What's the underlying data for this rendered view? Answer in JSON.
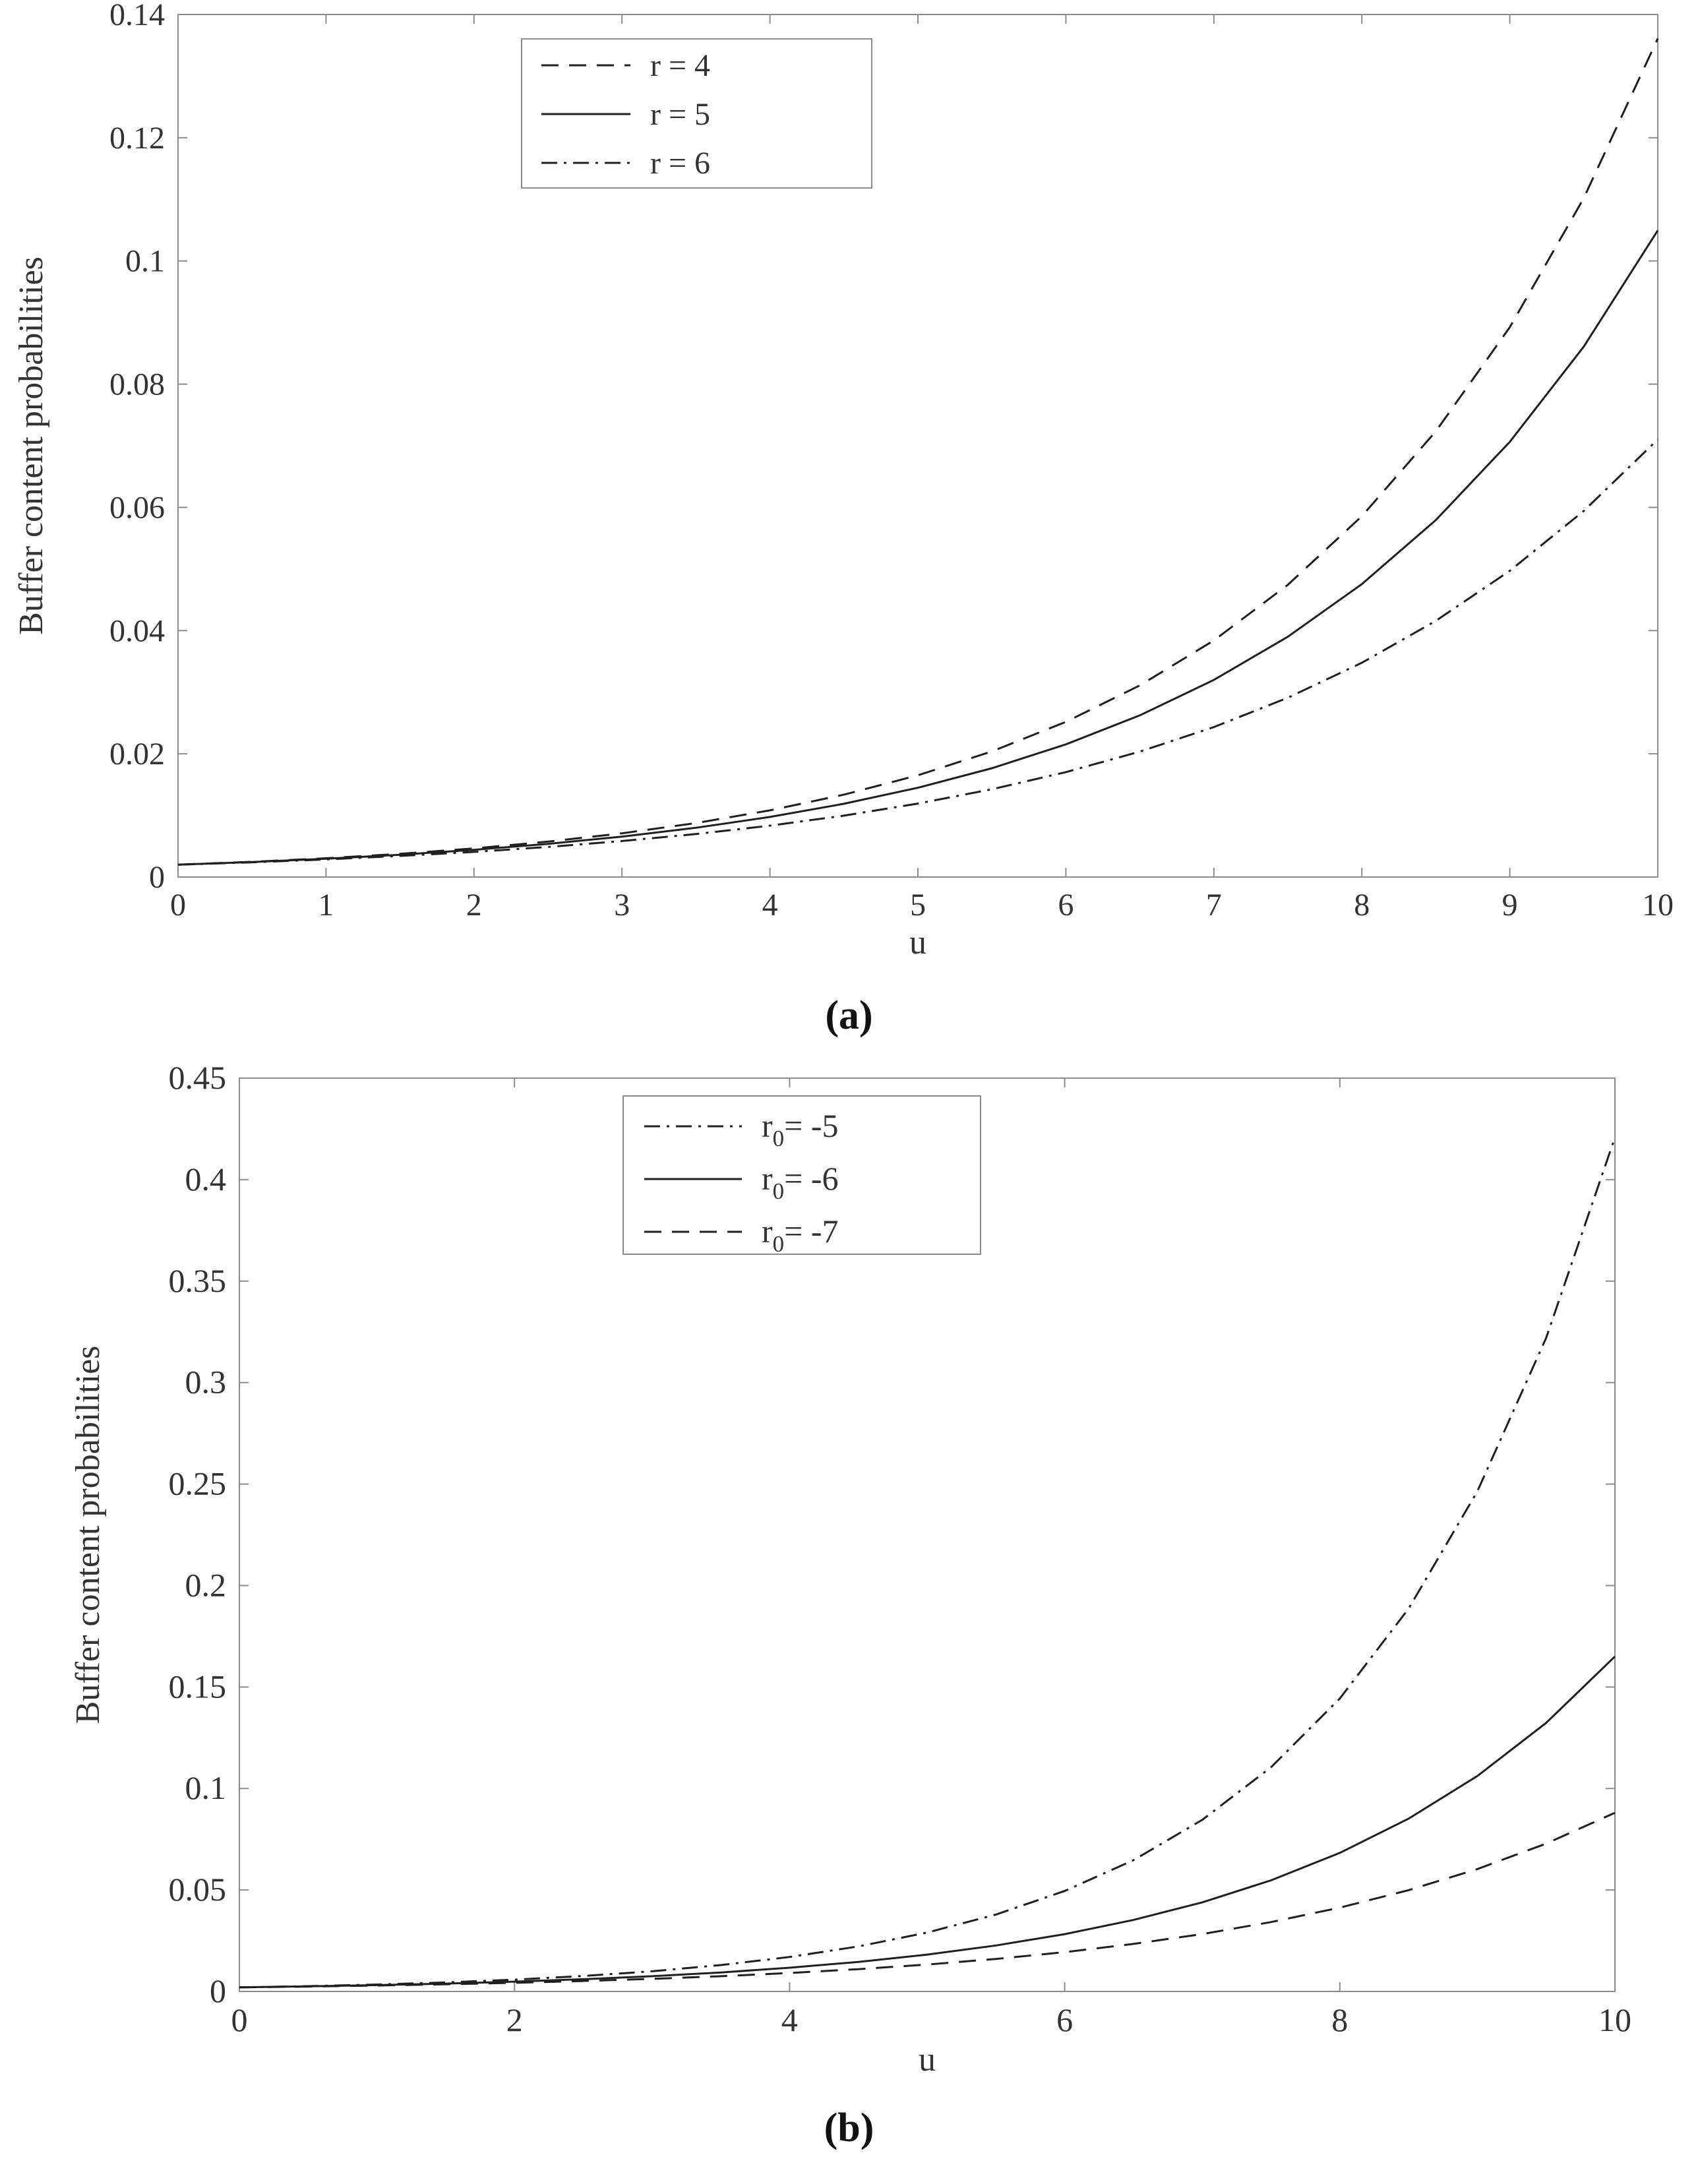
{
  "figure": {
    "background": "#ffffff",
    "curve_color": "#1f1f1f",
    "axis_color": "#8c8c8c",
    "tick_text_color": "#333333",
    "legend_border_color": "#8c8c8c",
    "legend_fill": "#ffffff"
  },
  "captions": {
    "a": {
      "open": "(",
      "letter": "a",
      "close": ")"
    },
    "b": {
      "open": "(",
      "letter": "b",
      "close": ")"
    }
  },
  "chart_data": [
    {
      "id": "a",
      "type": "line",
      "title": "",
      "xlabel": "u",
      "ylabel": "Buffer content probabilities",
      "xlim": [
        0,
        10
      ],
      "ylim": [
        0,
        0.14
      ],
      "grid": false,
      "legend_position": "top-center",
      "x_ticks": {
        "values": [
          0,
          1,
          2,
          3,
          4,
          5,
          6,
          7,
          8,
          9,
          10
        ],
        "labels": [
          "0",
          "1",
          "2",
          "3",
          "4",
          "5",
          "6",
          "7",
          "8",
          "9",
          "10"
        ]
      },
      "y_ticks": {
        "values": [
          0,
          0.02,
          0.04,
          0.06,
          0.08,
          0.1,
          0.12,
          0.14
        ],
        "labels": [
          "0",
          "0.02",
          "0.04",
          "0.06",
          "0.08",
          "0.1",
          "0.12",
          "0.14"
        ]
      },
      "x": [
        0,
        0.5,
        1,
        1.5,
        2,
        2.5,
        3,
        3.5,
        4,
        4.5,
        5,
        5.5,
        6,
        6.5,
        7,
        7.5,
        8,
        8.5,
        9,
        9.5,
        10
      ],
      "series": [
        {
          "name": "r = 4",
          "label": {
            "base": "r",
            "sub": "",
            "rest": " = 4"
          },
          "style": "dashed",
          "y": [
            0.002,
            0.00247,
            0.00305,
            0.00377,
            0.00465,
            0.00575,
            0.0071,
            0.00876,
            0.01082,
            0.01337,
            0.01651,
            0.02039,
            0.02518,
            0.0311,
            0.0384,
            0.04743,
            0.05857,
            0.07234,
            0.08924,
            0.1102,
            0.1361
          ]
        },
        {
          "name": "r = 5",
          "label": {
            "base": "r",
            "sub": "",
            "rest": " = 5"
          },
          "style": "solid",
          "y": [
            0.002,
            0.00244,
            0.00297,
            0.00362,
            0.00442,
            0.00538,
            0.00656,
            0.008,
            0.00975,
            0.01189,
            0.01449,
            0.01766,
            0.02153,
            0.02624,
            0.03199,
            0.039,
            0.04754,
            0.05794,
            0.07063,
            0.0861,
            0.10496
          ]
        },
        {
          "name": "r = 6",
          "label": {
            "base": "r",
            "sub": "",
            "rest": " = 6"
          },
          "style": "dashdot",
          "y": [
            0.002,
            0.00239,
            0.00286,
            0.00342,
            0.00408,
            0.00488,
            0.00584,
            0.00698,
            0.00834,
            0.00997,
            0.01192,
            0.01425,
            0.01703,
            0.02036,
            0.02434,
            0.0291,
            0.03478,
            0.04158,
            0.04971,
            0.05942,
            0.07103
          ]
        }
      ]
    },
    {
      "id": "b",
      "type": "line",
      "title": "",
      "xlabel": "u",
      "ylabel": "Buffer content probabilities",
      "xlim": [
        0,
        10
      ],
      "ylim": [
        0,
        0.45
      ],
      "grid": false,
      "legend_position": "top-center",
      "x_ticks": {
        "values": [
          0,
          2,
          4,
          6,
          8,
          10
        ],
        "labels": [
          "0",
          "2",
          "4",
          "6",
          "8",
          "10"
        ]
      },
      "y_ticks": {
        "values": [
          0,
          0.05,
          0.1,
          0.15,
          0.2,
          0.25,
          0.3,
          0.35,
          0.4,
          0.45
        ],
        "labels": [
          "0",
          "0.05",
          "0.1",
          "0.15",
          "0.2",
          "0.25",
          "0.3",
          "0.35",
          "0.4",
          "0.45"
        ]
      },
      "x": [
        0,
        0.5,
        1,
        1.5,
        2,
        2.5,
        3,
        3.5,
        4,
        4.5,
        5,
        5.5,
        6,
        6.5,
        7,
        7.5,
        8,
        8.5,
        9,
        9.5,
        10
      ],
      "series": [
        {
          "name": "r0 = -5",
          "label": {
            "base": "r",
            "sub": "0",
            "rest": "= -5"
          },
          "style": "dashdot",
          "y": [
            0.002,
            0.00261,
            0.00341,
            0.00446,
            0.00583,
            0.00762,
            0.00995,
            0.013,
            0.01699,
            0.0222,
            0.02901,
            0.0379,
            0.04952,
            0.0647,
            0.08454,
            0.11047,
            0.14434,
            0.1886,
            0.24642,
            0.32199,
            0.42072
          ]
        },
        {
          "name": "r0 = -6",
          "label": {
            "base": "r",
            "sub": "0",
            "rest": "= -6"
          },
          "style": "solid",
          "y": [
            0.002,
            0.00249,
            0.00311,
            0.00388,
            0.00483,
            0.00603,
            0.00752,
            0.00937,
            0.01169,
            0.01457,
            0.01817,
            0.02265,
            0.02825,
            0.03522,
            0.04391,
            0.05475,
            0.06827,
            0.08513,
            0.10614,
            0.13235,
            0.16502
          ]
        },
        {
          "name": "r0 = -7",
          "label": {
            "base": "r",
            "sub": "0",
            "rest": "= -7"
          },
          "style": "dashed",
          "y": [
            0.002,
            0.00242,
            0.00292,
            0.00353,
            0.00426,
            0.00515,
            0.00622,
            0.00752,
            0.00909,
            0.01098,
            0.01327,
            0.01603,
            0.01937,
            0.02341,
            0.02828,
            0.03418,
            0.0413,
            0.0499,
            0.06029,
            0.07285,
            0.08803
          ]
        }
      ]
    }
  ]
}
